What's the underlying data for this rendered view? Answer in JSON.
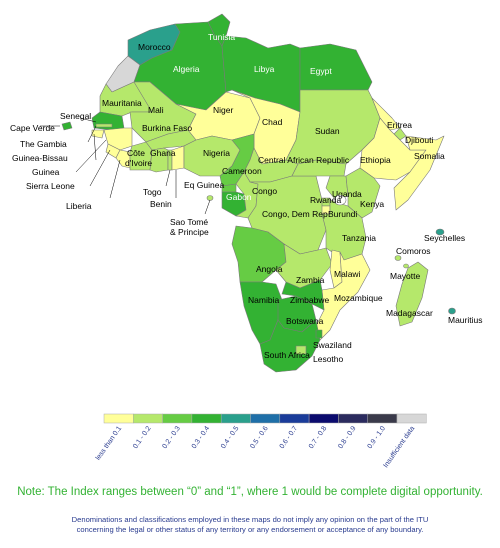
{
  "colors": {
    "c0": "#ffff99",
    "c1": "#b5e86b",
    "c2": "#66cc44",
    "c3": "#33b233",
    "c4": "#2aa08c",
    "c5": "#1f6fa8",
    "c6": "#1a3c9a",
    "c7": "#0b0b6e",
    "c8": "#2b2b5e",
    "c9": "#3a3a4a",
    "insufficient": "#d7d7d7",
    "border": "#7a7a7a"
  },
  "map": {
    "labels": {
      "tunisia": "Tunisia",
      "morocco": "Morocco",
      "algeria": "Algeria",
      "libya": "Libya",
      "egypt": "Egypt",
      "mauritania": "Mauritania",
      "mali": "Mali",
      "niger": "Niger",
      "chad": "Chad",
      "sudan": "Sudan",
      "eritrea": "Eritrea",
      "djibouti": "Djibouti",
      "senegal": "Senegal",
      "cape_verde": "Cape Verde",
      "the_gambia": "The Gambia",
      "guinea_bissau": "Guinea-Bissau",
      "guinea": "Guinea",
      "sierra_leone": "Sierra Leone",
      "liberia": "Liberia",
      "burkina_faso": "Burkina Faso",
      "cote_divoire_1": "Côte",
      "cote_divoire_2": "d'Ivoire",
      "ghana": "Ghana",
      "togo": "Togo",
      "benin": "Benin",
      "nigeria": "Nigeria",
      "central_african_republic": "Central African Republic",
      "ethiopia": "Ethiopia",
      "somalia": "Somalia",
      "cameroon": "Cameroon",
      "eq_guinea": "Eq Guinea",
      "congo": "Congo",
      "gabon": "Gabon",
      "sao_tome_1": "Sao Tomé",
      "sao_tome_2": "& Principe",
      "rwanda": "Rwanda",
      "uganda": "Uganda",
      "kenya": "Kenya",
      "burundi": "Burundi",
      "congo_dem_rep": "Congo, Dem Rep",
      "tanzania": "Tanzania",
      "seychelles": "Seychelles",
      "comoros": "Comoros",
      "mayotte": "Mayotte",
      "angola": "Angola",
      "zambia": "Zambia",
      "malawi": "Malawi",
      "mozambique": "Mozambique",
      "madagascar": "Madagascar",
      "mauritius": "Mauritius",
      "namibia": "Namibia",
      "zimbabwe": "Zimbabwe",
      "botswana": "Botswana",
      "swaziland": "Swaziland",
      "south_africa": "South Africa",
      "lesotho": "Lesotho"
    }
  },
  "legend": {
    "items": [
      "less than 0.1",
      "0.1 - 0.2",
      "0.2 - 0.3",
      "0.3 - 0.4",
      "0.4 - 0.5",
      "0.5 - 0.6",
      "0.6 - 0.7",
      "0.7 - 0.8",
      "0.8 - 0.9",
      "0.9 - 1.0",
      "Insufficient data"
    ]
  },
  "note": "Note: The Index ranges between “0” and “1”, where 1 would be complete digital opportunity.",
  "disclaimer": {
    "line1": "Denominations and classifications employed in these maps do not imply any opinion on the part of the ITU",
    "line2": "concerning the legal or other status of any territory or any endorsement or acceptance of any boundary."
  }
}
